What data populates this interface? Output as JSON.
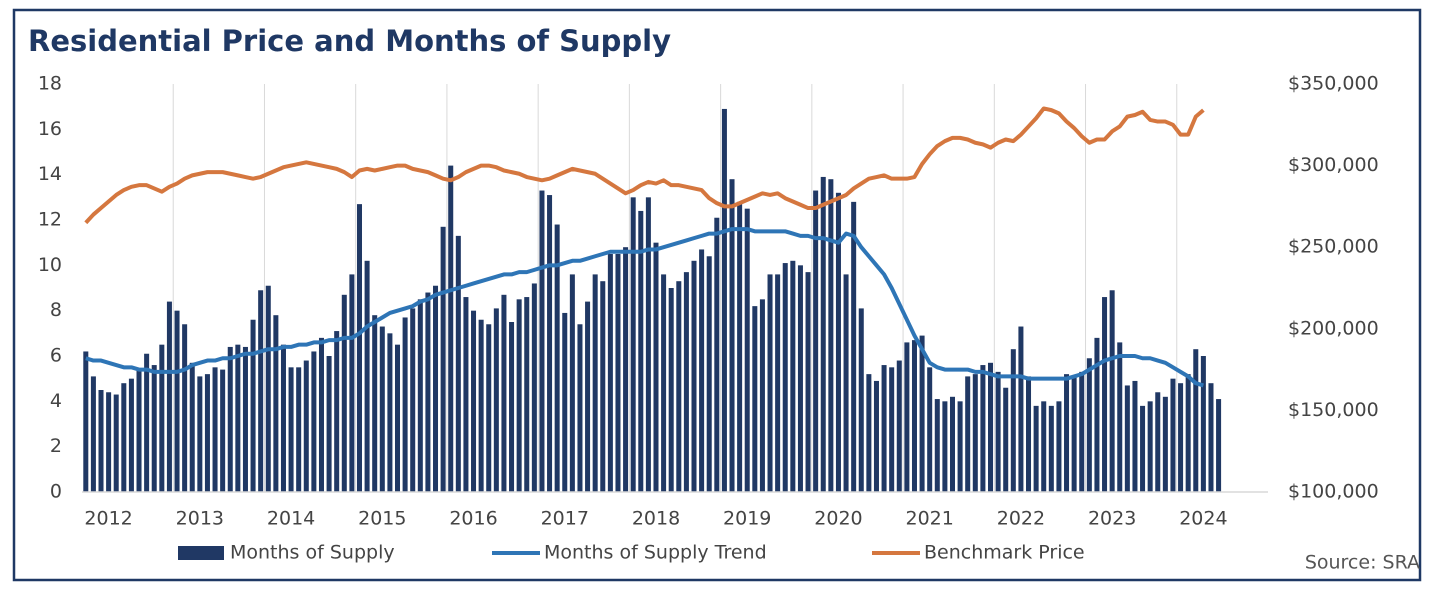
{
  "chart_data": {
    "type": "bar-line",
    "title": "Residential Price and Months of Supply",
    "source": "Source: SRA",
    "categories": [
      null,
      null,
      null,
      "2012",
      null,
      null,
      null,
      null,
      null,
      null,
      null,
      null,
      null,
      null,
      null,
      "2013",
      null,
      null,
      null,
      null,
      null,
      null,
      null,
      null,
      null,
      null,
      null,
      "2014",
      null,
      null,
      null,
      null,
      null,
      null,
      null,
      null,
      null,
      null,
      null,
      "2015",
      null,
      null,
      null,
      null,
      null,
      null,
      null,
      null,
      null,
      null,
      null,
      "2016",
      null,
      null,
      null,
      null,
      null,
      null,
      null,
      null,
      null,
      null,
      null,
      "2017",
      null,
      null,
      null,
      null,
      null,
      null,
      null,
      null,
      null,
      null,
      null,
      "2018",
      null,
      null,
      null,
      null,
      null,
      null,
      null,
      null,
      null,
      null,
      null,
      "2019",
      null,
      null,
      null,
      null,
      null,
      null,
      null,
      null,
      null,
      null,
      null,
      "2020",
      null,
      null,
      null,
      null,
      null,
      null,
      null,
      null,
      null,
      null,
      null,
      "2021",
      null,
      null,
      null,
      null,
      null,
      null,
      null,
      null,
      null,
      null,
      null,
      "2022",
      null,
      null,
      null,
      null,
      null,
      null,
      null,
      null,
      null,
      null,
      null,
      "2023",
      null,
      null,
      null,
      null,
      null,
      null,
      null,
      null,
      null,
      null,
      null,
      "2024",
      null,
      null,
      null,
      null,
      null,
      null,
      null,
      null
    ],
    "ylim": [
      0,
      18
    ],
    "yticks": [
      0,
      2,
      4,
      6,
      8,
      10,
      12,
      14,
      16,
      18
    ],
    "y2lim": [
      100000,
      350000
    ],
    "y2ticks": [
      {
        "value": 100000,
        "label": "$100,000"
      },
      {
        "value": 150000,
        "label": "$150,000"
      },
      {
        "value": 200000,
        "label": "$200,000"
      },
      {
        "value": 250000,
        "label": "$250,000"
      },
      {
        "value": 300000,
        "label": "$300,000"
      },
      {
        "value": 350000,
        "label": "$350,000"
      }
    ],
    "grid": false,
    "series": [
      {
        "name": "Months of Supply",
        "type": "bar",
        "color": "#203864",
        "values": [
          6.2,
          5.1,
          4.5,
          4.4,
          4.3,
          4.8,
          5.0,
          5.4,
          6.1,
          5.6,
          6.5,
          8.4,
          8.0,
          7.4,
          5.7,
          5.1,
          5.2,
          5.5,
          5.4,
          6.4,
          6.5,
          6.4,
          7.6,
          8.9,
          9.1,
          7.8,
          6.5,
          5.5,
          5.5,
          5.8,
          6.2,
          6.8,
          6.0,
          7.1,
          8.7,
          9.6,
          12.7,
          10.2,
          7.8,
          7.3,
          7.0,
          6.5,
          7.7,
          8.1,
          8.5,
          8.8,
          9.1,
          11.7,
          14.4,
          11.3,
          8.6,
          8.0,
          7.6,
          7.4,
          8.1,
          8.7,
          7.5,
          8.5,
          8.6,
          9.2,
          13.3,
          13.1,
          11.8,
          7.9,
          9.6,
          7.4,
          8.4,
          9.6,
          9.3,
          10.5,
          10.5,
          10.8,
          13.0,
          12.4,
          13.0,
          11.0,
          9.6,
          9.0,
          9.3,
          9.7,
          10.2,
          10.7,
          10.4,
          12.1,
          16.9,
          13.8,
          12.8,
          12.5,
          8.2,
          8.5,
          9.6,
          9.6,
          10.1,
          10.2,
          10.0,
          9.7,
          13.3,
          13.9,
          13.8,
          13.2,
          9.6,
          12.8,
          8.1,
          5.2,
          4.9,
          5.6,
          5.5,
          5.8,
          6.6,
          6.7,
          6.9,
          5.5,
          4.1,
          4.0,
          4.2,
          4.0,
          5.1,
          5.2,
          5.6,
          5.7,
          5.3,
          4.6,
          6.3,
          7.3,
          5.1,
          3.8,
          4.0,
          3.8,
          4.0,
          5.2,
          5.1,
          5.3,
          5.9,
          6.8,
          8.6,
          8.9,
          6.6,
          4.7,
          4.9,
          3.8,
          4.0,
          4.4,
          4.2,
          5.0,
          4.8,
          5.2,
          6.3,
          6.0,
          4.8,
          4.1,
          null,
          null,
          null,
          null,
          null,
          null
        ]
      },
      {
        "name": "Months of Supply Trend",
        "type": "line",
        "color": "#2e75b6",
        "values": [
          5.9,
          5.8,
          5.8,
          5.7,
          5.6,
          5.5,
          5.5,
          5.4,
          5.4,
          5.3,
          5.3,
          5.3,
          5.3,
          5.4,
          5.6,
          5.7,
          5.8,
          5.8,
          5.9,
          5.9,
          6.0,
          6.1,
          6.1,
          6.2,
          6.3,
          6.3,
          6.4,
          6.4,
          6.5,
          6.5,
          6.6,
          6.6,
          6.7,
          6.7,
          6.8,
          6.8,
          7.0,
          7.3,
          7.5,
          7.7,
          7.9,
          8.0,
          8.1,
          8.2,
          8.4,
          8.5,
          8.7,
          8.8,
          8.9,
          9.0,
          9.1,
          9.2,
          9.3,
          9.4,
          9.5,
          9.6,
          9.6,
          9.7,
          9.7,
          9.8,
          9.9,
          10.0,
          10.0,
          10.1,
          10.2,
          10.2,
          10.3,
          10.4,
          10.5,
          10.6,
          10.6,
          10.6,
          10.6,
          10.6,
          10.7,
          10.7,
          10.8,
          10.9,
          11.0,
          11.1,
          11.2,
          11.3,
          11.4,
          11.4,
          11.5,
          11.6,
          11.6,
          11.6,
          11.5,
          11.5,
          11.5,
          11.5,
          11.5,
          11.4,
          11.3,
          11.3,
          11.2,
          11.2,
          11.1,
          11.0,
          11.4,
          11.3,
          10.8,
          10.4,
          10.0,
          9.6,
          9.0,
          8.3,
          7.6,
          6.9,
          6.3,
          5.7,
          5.5,
          5.4,
          5.4,
          5.4,
          5.4,
          5.3,
          5.3,
          5.2,
          5.1,
          5.1,
          5.1,
          5.1,
          5.0,
          5.0,
          5.0,
          5.0,
          5.0,
          5.0,
          5.1,
          5.2,
          5.4,
          5.6,
          5.8,
          5.9,
          6.0,
          6.0,
          6.0,
          5.9,
          5.9,
          5.8,
          5.7,
          5.5,
          5.3,
          5.1,
          4.8,
          4.7,
          null,
          null,
          null,
          null,
          null,
          null,
          null,
          null
        ]
      },
      {
        "name": "Benchmark Price",
        "type": "line",
        "axis": "y2",
        "color": "#d5773f",
        "values": [
          265000,
          270000,
          274000,
          278000,
          282000,
          285000,
          287000,
          288000,
          288000,
          286000,
          284000,
          287000,
          289000,
          292000,
          294000,
          295000,
          296000,
          296000,
          296000,
          295000,
          294000,
          293000,
          292000,
          293000,
          295000,
          297000,
          299000,
          300000,
          301000,
          302000,
          301000,
          300000,
          299000,
          298000,
          296000,
          293000,
          297000,
          298000,
          297000,
          298000,
          299000,
          300000,
          300000,
          298000,
          297000,
          296000,
          294000,
          292000,
          291000,
          293000,
          296000,
          298000,
          300000,
          300000,
          299000,
          297000,
          296000,
          295000,
          293000,
          292000,
          291000,
          292000,
          294000,
          296000,
          298000,
          297000,
          296000,
          295000,
          292000,
          289000,
          286000,
          283000,
          285000,
          288000,
          290000,
          289000,
          291000,
          288000,
          288000,
          287000,
          286000,
          285000,
          280000,
          277000,
          275000,
          275000,
          277000,
          279000,
          281000,
          283000,
          282000,
          283000,
          280000,
          278000,
          276000,
          274000,
          274000,
          276000,
          278000,
          280000,
          282000,
          286000,
          289000,
          292000,
          293000,
          294000,
          292000,
          292000,
          292000,
          293000,
          301000,
          307000,
          312000,
          315000,
          317000,
          317000,
          316000,
          314000,
          313000,
          311000,
          314000,
          316000,
          315000,
          319000,
          324000,
          329000,
          335000,
          334000,
          332000,
          327000,
          323000,
          318000,
          314000,
          316000,
          316000,
          321000,
          324000,
          330000,
          331000,
          333000,
          328000,
          327000,
          327000,
          325000,
          319000,
          319000,
          330000,
          334000,
          null,
          null,
          null,
          null,
          null,
          null,
          null,
          null
        ]
      }
    ]
  }
}
